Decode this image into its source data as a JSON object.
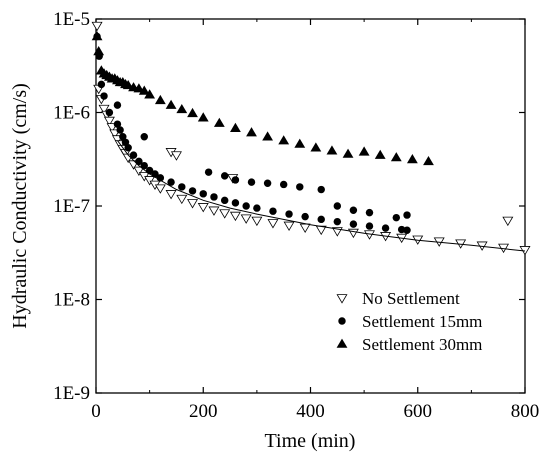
{
  "chart_data": {
    "type": "scatter",
    "xlabel": "Time (min)",
    "ylabel": "Hydraulic Conductivity (cm/s)",
    "xlim": [
      0,
      800
    ],
    "ylim": [
      1e-09,
      1e-05
    ],
    "yscale": "log",
    "x_ticks": [
      0,
      200,
      400,
      600,
      800
    ],
    "x_tick_labels": [
      "0",
      "200",
      "400",
      "600",
      "800"
    ],
    "y_ticks": [
      1e-09,
      1e-08,
      1e-07,
      1e-06,
      1e-05
    ],
    "y_tick_labels": [
      "1E-9",
      "1E-8",
      "1E-7",
      "1E-6",
      "1E-5"
    ],
    "grid": false,
    "legend_position": "bottom-right",
    "series": [
      {
        "name": "No Settlement",
        "marker": "open-triangle-down",
        "color": "#000000",
        "x": [
          2,
          5,
          10,
          15,
          20,
          25,
          30,
          35,
          40,
          45,
          50,
          55,
          60,
          70,
          80,
          90,
          100,
          110,
          120,
          140,
          160,
          180,
          200,
          220,
          240,
          260,
          280,
          300,
          330,
          360,
          390,
          420,
          450,
          480,
          510,
          540,
          570,
          600,
          640,
          680,
          720,
          760,
          800,
          140,
          150,
          255,
          768
        ],
        "y": [
          8.5e-06,
          1.8e-06,
          1.4e-06,
          1.1e-06,
          9.5e-07,
          8.2e-07,
          7e-07,
          6e-07,
          5.2e-07,
          4.6e-07,
          4.1e-07,
          3.7e-07,
          3.3e-07,
          2.8e-07,
          2.4e-07,
          2.1e-07,
          1.9e-07,
          1.7e-07,
          1.55e-07,
          1.35e-07,
          1.2e-07,
          1.08e-07,
          9.8e-08,
          9e-08,
          8.4e-08,
          7.9e-08,
          7.4e-08,
          7e-08,
          6.6e-08,
          6.2e-08,
          5.9e-08,
          5.6e-08,
          5.4e-08,
          5.2e-08,
          5e-08,
          4.8e-08,
          4.6e-08,
          4.4e-08,
          4.2e-08,
          4e-08,
          3.8e-08,
          3.6e-08,
          3.4e-08,
          3.8e-07,
          3.5e-07,
          2e-07,
          7e-08
        ]
      },
      {
        "name": "Settlement 15mm",
        "marker": "filled-circle",
        "color": "#000000",
        "x": [
          2,
          6,
          10,
          15,
          25,
          40,
          45,
          50,
          55,
          60,
          70,
          80,
          90,
          100,
          110,
          120,
          140,
          160,
          180,
          200,
          220,
          240,
          260,
          280,
          300,
          330,
          360,
          390,
          420,
          450,
          480,
          510,
          540,
          570,
          580,
          40,
          90,
          210,
          240,
          260,
          290,
          320,
          350,
          380,
          420,
          450,
          480,
          510,
          560,
          580
        ],
        "y": [
          6.5e-06,
          4e-06,
          2e-06,
          1.5e-06,
          1e-06,
          7.5e-07,
          6.5e-07,
          5.5e-07,
          4.8e-07,
          4.2e-07,
          3.5e-07,
          3e-07,
          2.7e-07,
          2.4e-07,
          2.2e-07,
          2e-07,
          1.8e-07,
          1.6e-07,
          1.45e-07,
          1.35e-07,
          1.25e-07,
          1.15e-07,
          1.08e-07,
          1e-07,
          9.5e-08,
          8.8e-08,
          8.2e-08,
          7.7e-08,
          7.2e-08,
          6.8e-08,
          6.4e-08,
          6.1e-08,
          5.8e-08,
          5.6e-08,
          5.5e-08,
          1.2e-06,
          5.5e-07,
          2.3e-07,
          2.1e-07,
          1.9e-07,
          1.8e-07,
          1.75e-07,
          1.7e-07,
          1.6e-07,
          1.5e-07,
          1e-07,
          9e-08,
          8.5e-08,
          7.5e-08,
          8e-08
        ]
      },
      {
        "name": "Settlement 30mm",
        "marker": "filled-triangle-up",
        "color": "#000000",
        "x": [
          2,
          5,
          10,
          15,
          20,
          25,
          30,
          35,
          40,
          45,
          50,
          55,
          60,
          70,
          80,
          90,
          100,
          120,
          140,
          160,
          180,
          200,
          230,
          260,
          290,
          320,
          350,
          380,
          410,
          440,
          470,
          500,
          530,
          560,
          590,
          620
        ],
        "y": [
          6.5e-06,
          4.5e-06,
          2.8e-06,
          2.6e-06,
          2.5e-06,
          2.4e-06,
          2.3e-06,
          2.3e-06,
          2.2e-06,
          2.1e-06,
          2.1e-06,
          2e-06,
          1.95e-06,
          1.85e-06,
          1.8e-06,
          1.7e-06,
          1.55e-06,
          1.35e-06,
          1.2e-06,
          1.08e-06,
          9.8e-07,
          8.8e-07,
          7.7e-07,
          6.8e-07,
          6.1e-07,
          5.5e-07,
          5e-07,
          4.6e-07,
          4.2e-07,
          3.9e-07,
          3.6e-07,
          3.8e-07,
          3.5e-07,
          3.3e-07,
          3.15e-07,
          3e-07
        ]
      }
    ],
    "trend_line": {
      "x": [
        40,
        60,
        80,
        100,
        150,
        200,
        250,
        300,
        400,
        500,
        600,
        700,
        800
      ],
      "y": [
        5e-07,
        3.5e-07,
        2.7e-07,
        2.2e-07,
        1.5e-07,
        1.15e-07,
        9.5e-08,
        8.2e-08,
        6.3e-08,
        5.1e-08,
        4.3e-08,
        3.8e-08,
        3.3e-08
      ]
    }
  }
}
